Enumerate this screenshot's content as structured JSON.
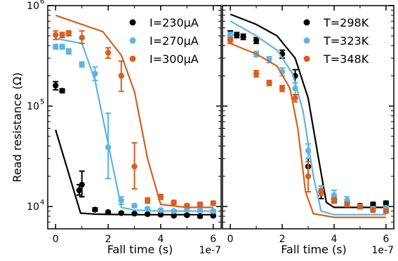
{
  "ylabel": "Read resistance (Ω)",
  "x_scale_label": "1e-7",
  "chart_data": [
    {
      "type": "scatter",
      "subtype": "scatter-with-errorbars-and-lines",
      "xlabel": "Fall time (s)",
      "ylabel": "Read resistance (Ω)",
      "yscale": "log",
      "xlim": [
        -3e-08,
        6.3e-07
      ],
      "ylim": [
        6000,
        1000000
      ],
      "x_ticks": [
        0,
        2e-07,
        4e-07,
        6e-07
      ],
      "x_tick_labels": [
        "0",
        "2",
        "4",
        "6"
      ],
      "x_multiplier": "1e-7",
      "y_ticks": [
        10000,
        100000,
        1000000
      ],
      "y_tick_labels": [
        "10",
        "10",
        "10"
      ],
      "y_tick_exponents": [
        "4",
        "5",
        "6"
      ],
      "legend_position": "top-right",
      "series": [
        {
          "name": "I=230μA",
          "color": "#000000",
          "points": [
            {
              "x": 0,
              "y": 160000,
              "err": [
                145000,
                175000
              ]
            },
            {
              "x": 2.5e-08,
              "y": 142000,
              "err": [
                136000,
                148000
              ]
            },
            {
              "x": 9e-08,
              "y": 14500,
              "err": [
                13000,
                16500
              ]
            },
            {
              "x": 1e-07,
              "y": 16500,
              "err": [
                12500,
                22500
              ]
            },
            {
              "x": 1.5e-07,
              "y": 9300,
              "err": [
                9000,
                9700
              ]
            },
            {
              "x": 2e-07,
              "y": 8800,
              "err": [
                8600,
                9000
              ]
            },
            {
              "x": 2.5e-07,
              "y": 8600,
              "err": [
                8400,
                8800
              ]
            },
            {
              "x": 3e-07,
              "y": 8500,
              "err": [
                8300,
                8700
              ]
            },
            {
              "x": 3.5e-07,
              "y": 8400,
              "err": [
                8200,
                8600
              ]
            },
            {
              "x": 4e-07,
              "y": 8300,
              "err": [
                8100,
                8500
              ]
            },
            {
              "x": 4.5e-07,
              "y": 8100,
              "err": [
                7900,
                8300
              ]
            },
            {
              "x": 5e-07,
              "y": 8200,
              "err": [
                8000,
                8400
              ]
            },
            {
              "x": 5.5e-07,
              "y": 8000,
              "err": [
                7800,
                8200
              ]
            },
            {
              "x": 6e-07,
              "y": 8100,
              "err": [
                7900,
                8300
              ]
            }
          ],
          "line": [
            [
              0,
              58000
            ],
            [
              9.5e-08,
              8600
            ],
            [
              1.5e-07,
              8400
            ],
            [
              2e-07,
              8350
            ],
            [
              3e-07,
              8300
            ],
            [
              4e-07,
              8300
            ],
            [
              5e-07,
              8300
            ],
            [
              6e-07,
              8300
            ]
          ]
        },
        {
          "name": "I=270μA",
          "color": "#5bb5e8",
          "points": [
            {
              "x": 0,
              "y": 390000,
              "err": [
                370000,
                410000
              ]
            },
            {
              "x": 2.5e-08,
              "y": 390000,
              "err": [
                370000,
                410000
              ]
            },
            {
              "x": 5e-08,
              "y": 350000,
              "err": [
                330000,
                370000
              ]
            },
            {
              "x": 1e-07,
              "y": 260000,
              "err": [
                245000,
                275000
              ]
            },
            {
              "x": 1.5e-07,
              "y": 210000,
              "err": [
                180000,
                245000
              ]
            },
            {
              "x": 2e-07,
              "y": 39000,
              "err": [
                19000,
                85000
              ]
            },
            {
              "x": 2.5e-07,
              "y": 11500,
              "err": [
                10500,
                12500
              ]
            },
            {
              "x": 3e-07,
              "y": 10200,
              "err": [
                9800,
                10600
              ]
            },
            {
              "x": 3.5e-07,
              "y": 9500,
              "err": [
                9200,
                9800
              ]
            },
            {
              "x": 4e-07,
              "y": 9200,
              "err": [
                8900,
                9500
              ]
            },
            {
              "x": 4.5e-07,
              "y": 9000,
              "err": [
                8700,
                9300
              ]
            },
            {
              "x": 5e-07,
              "y": 9300,
              "err": [
                9000,
                9600
              ]
            },
            {
              "x": 5.5e-07,
              "y": 9100,
              "err": [
                8800,
                9400
              ]
            },
            {
              "x": 6e-07,
              "y": 9000,
              "err": [
                8700,
                9300
              ]
            }
          ],
          "line": [
            [
              0,
              470000
            ],
            [
              1e-07,
              420000
            ],
            [
              1.5e-07,
              180000
            ],
            [
              2e-07,
              42000
            ],
            [
              2.5e-07,
              9800
            ],
            [
              3e-07,
              9200
            ],
            [
              4e-07,
              9000
            ],
            [
              5e-07,
              9000
            ],
            [
              6e-07,
              9000
            ]
          ]
        },
        {
          "name": "I=300μA",
          "color": "#d95f1e",
          "points": [
            {
              "x": 0,
              "y": 510000,
              "err": [
                460000,
                560000
              ]
            },
            {
              "x": 2.5e-08,
              "y": 510000,
              "err": [
                480000,
                540000
              ]
            },
            {
              "x": 5e-08,
              "y": 530000,
              "err": [
                500000,
                560000
              ]
            },
            {
              "x": 1e-07,
              "y": 480000,
              "err": [
                420000,
                560000
              ]
            },
            {
              "x": 2e-07,
              "y": 340000,
              "err": [
                300000,
                380000
              ]
            },
            {
              "x": 2.5e-07,
              "y": 200000,
              "err": [
                140000,
                280000
              ]
            },
            {
              "x": 3e-07,
              "y": 25000,
              "err": [
                15000,
                43000
              ]
            },
            {
              "x": 3.5e-07,
              "y": 11500,
              "err": [
                10800,
                12200
              ]
            },
            {
              "x": 4e-07,
              "y": 12500,
              "err": [
                11800,
                13200
              ]
            },
            {
              "x": 4.5e-07,
              "y": 11000,
              "err": [
                10500,
                11500
              ]
            },
            {
              "x": 5e-07,
              "y": 10200,
              "err": [
                9800,
                10600
              ]
            },
            {
              "x": 5.5e-07,
              "y": 10500,
              "err": [
                10000,
                11000
              ]
            },
            {
              "x": 6e-07,
              "y": 10800,
              "err": [
                10300,
                11300
              ]
            }
          ],
          "line": [
            [
              0,
              800000
            ],
            [
              1e-07,
              650000
            ],
            [
              1.8e-07,
              550000
            ],
            [
              2.5e-07,
              320000
            ],
            [
              3e-07,
              140000
            ],
            [
              3.5e-07,
              30000
            ],
            [
              4e-07,
              10500
            ],
            [
              5e-07,
              9800
            ],
            [
              6e-07,
              9800
            ]
          ]
        }
      ]
    },
    {
      "type": "scatter",
      "subtype": "scatter-with-errorbars-and-lines",
      "xlabel": "Fall time (s)",
      "yscale": "log",
      "xlim": [
        -3e-08,
        6.3e-07
      ],
      "ylim": [
        6000,
        1000000
      ],
      "x_ticks": [
        0,
        2e-07,
        4e-07,
        6e-07
      ],
      "x_tick_labels": [
        "0",
        "2",
        "4",
        "6"
      ],
      "x_multiplier": "1e-7",
      "legend_position": "top-right",
      "series": [
        {
          "name": "T=298K",
          "color": "#000000",
          "points": [
            {
              "x": 0,
              "y": 510000,
              "err": [
                460000,
                560000
              ]
            },
            {
              "x": 2.5e-08,
              "y": 510000,
              "err": [
                480000,
                540000
              ]
            },
            {
              "x": 5e-08,
              "y": 490000,
              "err": [
                460000,
                520000
              ]
            },
            {
              "x": 1e-07,
              "y": 450000,
              "err": [
                420000,
                480000
              ]
            },
            {
              "x": 2e-07,
              "y": 330000,
              "err": [
                300000,
                360000
              ]
            },
            {
              "x": 2.5e-07,
              "y": 200000,
              "err": [
                170000,
                230000
              ]
            },
            {
              "x": 3e-07,
              "y": 25000,
              "err": [
                20000,
                30000
              ]
            },
            {
              "x": 3.5e-07,
              "y": 14000,
              "err": [
                12000,
                16000
              ]
            },
            {
              "x": 4e-07,
              "y": 12000,
              "err": [
                11000,
                13000
              ]
            },
            {
              "x": 4.5e-07,
              "y": 11000,
              "err": [
                10500,
                11500
              ]
            },
            {
              "x": 5e-07,
              "y": 10200,
              "err": [
                9800,
                10600
              ]
            },
            {
              "x": 5.5e-07,
              "y": 10500,
              "err": [
                10000,
                11000
              ]
            },
            {
              "x": 6e-07,
              "y": 10800,
              "err": [
                10300,
                11300
              ]
            }
          ],
          "line": [
            [
              0,
              820000
            ],
            [
              1e-07,
              650000
            ],
            [
              1.8e-07,
              500000
            ],
            [
              2.5e-07,
              300000
            ],
            [
              3e-07,
              120000
            ],
            [
              3.4e-07,
              30000
            ],
            [
              3.7e-07,
              11000
            ],
            [
              4e-07,
              9800
            ],
            [
              5e-07,
              9800
            ],
            [
              6e-07,
              9800
            ]
          ]
        },
        {
          "name": "T=323K",
          "color": "#5bb5e8",
          "points": [
            {
              "x": 0,
              "y": 510000,
              "err": [
                480000,
                540000
              ]
            },
            {
              "x": 1e-07,
              "y": 330000,
              "err": [
                310000,
                350000
              ]
            },
            {
              "x": 1.5e-07,
              "y": 290000,
              "err": [
                270000,
                310000
              ]
            },
            {
              "x": 2e-07,
              "y": 220000,
              "err": [
                200000,
                240000
              ]
            },
            {
              "x": 2.5e-07,
              "y": 150000,
              "err": [
                130000,
                170000
              ]
            },
            {
              "x": 3e-07,
              "y": 36000,
              "err": [
                30000,
                42000
              ]
            },
            {
              "x": 3.5e-07,
              "y": 14500,
              "err": [
                13000,
                16000
              ]
            },
            {
              "x": 4e-07,
              "y": 13000,
              "err": [
                11500,
                14500
              ]
            },
            {
              "x": 4.5e-07,
              "y": 11500,
              "err": [
                10500,
                12500
              ]
            },
            {
              "x": 5e-07,
              "y": 10000,
              "err": [
                9500,
                10500
              ]
            },
            {
              "x": 5.5e-07,
              "y": 9500,
              "err": [
                9100,
                9900
              ]
            },
            {
              "x": 6e-07,
              "y": 9700,
              "err": [
                9300,
                10100
              ]
            }
          ],
          "line": [
            [
              0,
              700000
            ],
            [
              1e-07,
              500000
            ],
            [
              1.8e-07,
              360000
            ],
            [
              2.4e-07,
              210000
            ],
            [
              2.8e-07,
              90000
            ],
            [
              3.2e-07,
              20000
            ],
            [
              3.5e-07,
              9000
            ],
            [
              4e-07,
              8300
            ],
            [
              5e-07,
              8300
            ],
            [
              6e-07,
              8300
            ]
          ]
        },
        {
          "name": "T=348K",
          "color": "#d95f1e",
          "points": [
            {
              "x": 0,
              "y": 450000,
              "err": [
                420000,
                480000
              ]
            },
            {
              "x": 1e-07,
              "y": 210000,
              "err": [
                195000,
                225000
              ]
            },
            {
              "x": 1.5e-07,
              "y": 170000,
              "err": [
                160000,
                180000
              ]
            },
            {
              "x": 2e-07,
              "y": 150000,
              "err": [
                140000,
                160000
              ]
            },
            {
              "x": 2.5e-07,
              "y": 120000,
              "err": [
                110000,
                130000
              ]
            },
            {
              "x": 3e-07,
              "y": 20000,
              "err": [
                14000,
                28000
              ]
            },
            {
              "x": 3.5e-07,
              "y": 14000,
              "err": [
                13000,
                15000
              ]
            },
            {
              "x": 4e-07,
              "y": 11500,
              "err": [
                10800,
                12200
              ]
            },
            {
              "x": 4.5e-07,
              "y": 10500,
              "err": [
                10000,
                11000
              ]
            },
            {
              "x": 5e-07,
              "y": 10000,
              "err": [
                9500,
                10500
              ]
            },
            {
              "x": 5.5e-07,
              "y": 9200,
              "err": [
                8800,
                9600
              ]
            },
            {
              "x": 6e-07,
              "y": 9000,
              "err": [
                8600,
                9400
              ]
            }
          ],
          "line": [
            [
              0,
              420000
            ],
            [
              1e-07,
              330000
            ],
            [
              1.8e-07,
              250000
            ],
            [
              2.3e-07,
              150000
            ],
            [
              2.6e-07,
              60000
            ],
            [
              2.9e-07,
              14000
            ],
            [
              3.2e-07,
              8500
            ],
            [
              4e-07,
              7800
            ],
            [
              5e-07,
              7800
            ],
            [
              6e-07,
              7800
            ]
          ]
        }
      ]
    }
  ]
}
